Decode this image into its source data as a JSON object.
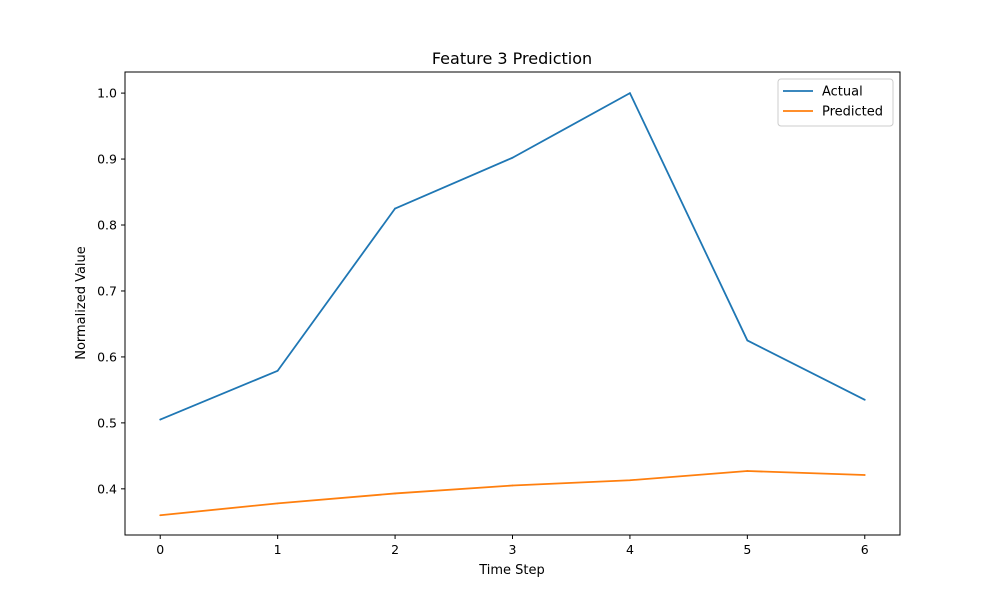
{
  "chart_data": {
    "type": "line",
    "title": "Feature 3 Prediction",
    "xlabel": "Time Step",
    "ylabel": "Normalized Value",
    "x": [
      0,
      1,
      2,
      3,
      4,
      5,
      6
    ],
    "xlim": [
      -0.3,
      6.3
    ],
    "ylim": [
      0.33,
      1.032
    ],
    "xticks": [
      0,
      1,
      2,
      3,
      4,
      5,
      6
    ],
    "yticks": [
      0.4,
      0.5,
      0.6,
      0.7,
      0.8,
      0.9,
      1.0
    ],
    "grid": false,
    "legend_position": "top-right",
    "series": [
      {
        "name": "Actual",
        "color": "#1f77b4",
        "values": [
          0.505,
          0.579,
          0.825,
          0.902,
          1.0,
          0.625,
          0.535
        ]
      },
      {
        "name": "Predicted",
        "color": "#ff7f0e",
        "values": [
          0.36,
          0.378,
          0.393,
          0.405,
          0.413,
          0.427,
          0.421
        ]
      }
    ]
  }
}
